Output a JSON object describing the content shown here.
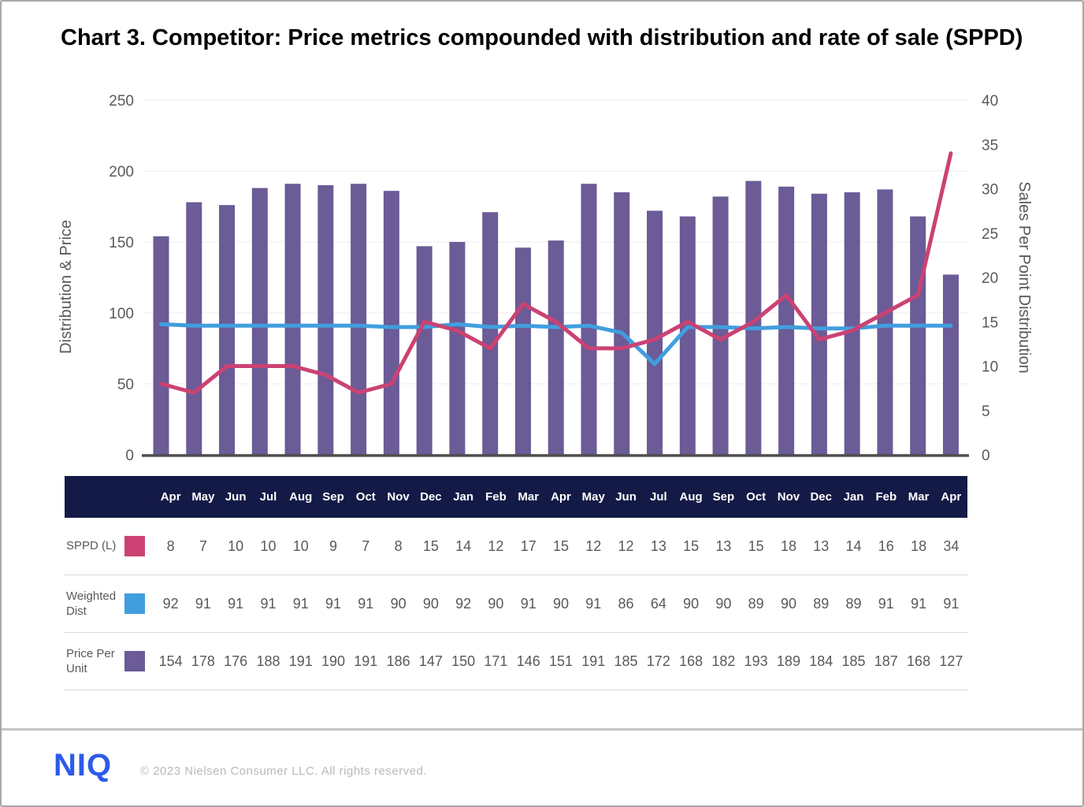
{
  "title": "Chart 3. Competitor: Price metrics compounded with distribution and rate of sale (SPPD)",
  "chart_data": {
    "type": "combo",
    "categories": [
      "Apr",
      "May",
      "Jun",
      "Jul",
      "Aug",
      "Sep",
      "Oct",
      "Nov",
      "Dec",
      "Jan",
      "Feb",
      "Mar",
      "Apr",
      "May",
      "Jun",
      "Jul",
      "Aug",
      "Sep",
      "Oct",
      "Nov",
      "Dec",
      "Jan",
      "Feb",
      "Mar",
      "Apr"
    ],
    "series": [
      {
        "name": "SPPD (L)",
        "type": "line",
        "axis": "right",
        "color": "#CB4273",
        "values": [
          8,
          7,
          10,
          10,
          10,
          9,
          7,
          8,
          15,
          14,
          12,
          17,
          15,
          12,
          12,
          13,
          15,
          13,
          15,
          18,
          13,
          14,
          16,
          18,
          34
        ]
      },
      {
        "name": "Weighted Dist",
        "type": "line",
        "axis": "left",
        "color": "#419EDE",
        "values": [
          92,
          91,
          91,
          91,
          91,
          91,
          91,
          90,
          90,
          92,
          90,
          91,
          90,
          91,
          86,
          64,
          90,
          90,
          89,
          90,
          89,
          89,
          91,
          91,
          91
        ]
      },
      {
        "name": "Price Per Unit",
        "type": "bar",
        "axis": "left",
        "color": "#6B5B96",
        "values": [
          154,
          178,
          176,
          188,
          191,
          190,
          191,
          186,
          147,
          150,
          171,
          146,
          151,
          191,
          185,
          172,
          168,
          182,
          193,
          189,
          184,
          185,
          187,
          168,
          127
        ]
      }
    ],
    "left_axis": {
      "label": "Distribution & Price",
      "min": 0,
      "max": 250,
      "step": 50
    },
    "right_axis": {
      "label": "Sales Per Point Distribution",
      "min": 0,
      "max": 40,
      "step": 5
    },
    "grid": "horizontal",
    "legend_position": "table-left"
  },
  "table": {
    "rows": [
      {
        "label": "SPPD (L)",
        "color": "#CB4273",
        "values": [
          "8",
          "7",
          "10",
          "10",
          "10",
          "9",
          "7",
          "8",
          "15",
          "14",
          "12",
          "17",
          "15",
          "12",
          "12",
          "13",
          "15",
          "13",
          "15",
          "18",
          "13",
          "14",
          "16",
          "18",
          "34"
        ]
      },
      {
        "label": "Weighted Dist",
        "color": "#419EDE",
        "values": [
          "92",
          "91",
          "91",
          "91",
          "91",
          "91",
          "91",
          "90",
          "90",
          "92",
          "90",
          "91",
          "90",
          "91",
          "86",
          "64",
          "90",
          "90",
          "89",
          "90",
          "89",
          "89",
          "91",
          "91",
          "91"
        ]
      },
      {
        "label": "Price Per Unit",
        "color": "#6B5B96",
        "values": [
          "154",
          "178",
          "176",
          "188",
          "191",
          "190",
          "191",
          "186",
          "147",
          "150",
          "171",
          "146",
          "151",
          "191",
          "185",
          "172",
          "168",
          "182",
          "193",
          "189",
          "184",
          "185",
          "187",
          "168",
          "127"
        ]
      }
    ]
  },
  "footer": {
    "logo": "NIQ",
    "copyright": "© 2023 Nielsen Consumer LLC. All rights reserved."
  },
  "colors": {
    "header_navy": "#141A46",
    "bar_purple": "#6B5B96",
    "line_pink": "#CB4273",
    "line_blue": "#419EDE",
    "gridline": "#ececec",
    "baseline": "#4d4d4d",
    "text_gray": "#595959",
    "divider": "#d9d9d9",
    "logo_blue": "#2D5AE8"
  }
}
